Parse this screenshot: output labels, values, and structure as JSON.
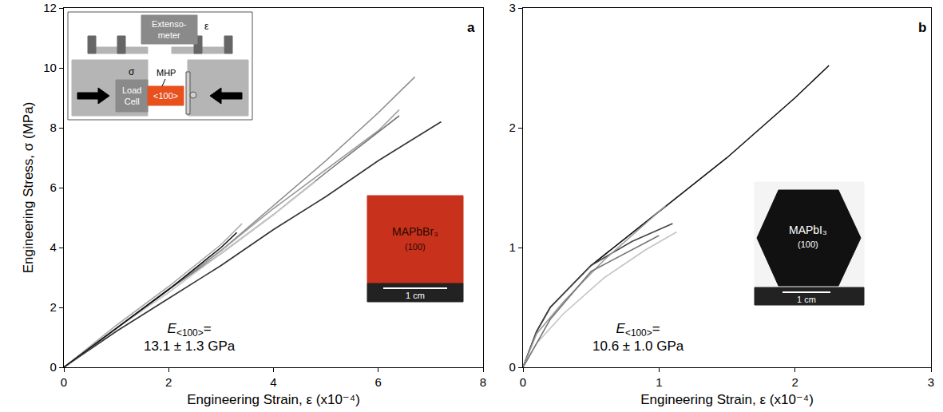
{
  "chart_data": [
    {
      "type": "line",
      "panel_label": "a",
      "x_label": "Engineering Strain, ε (x10⁻⁴)",
      "y_label": "Engineering Stress, σ (MPa)",
      "xlim": [
        0,
        8
      ],
      "xticks": [
        0,
        2,
        4,
        6,
        8
      ],
      "ylim": [
        0,
        12
      ],
      "yticks": [
        0,
        2,
        4,
        6,
        8,
        10,
        12
      ],
      "grid": false,
      "modulus": {
        "symbol": "E",
        "subscript": "<100>",
        "after": "=",
        "value": "13.1 ± 1.3 GPa"
      },
      "photo": {
        "material": "MAPbBr₃",
        "face": "(100)",
        "scale_bar": "1 cm",
        "color": "#c8321c"
      },
      "schematic": {
        "extensometer": [
          "Extenso-",
          "meter"
        ],
        "strain_symbol": "ε",
        "stress_symbol": "σ",
        "sample": "MHP",
        "load_cell": [
          "Load",
          "Cell"
        ],
        "direction": "<100>",
        "sample_color": "#e8501e"
      },
      "series": [
        {
          "color": "#333333",
          "x": [
            0,
            1,
            2,
            3,
            4,
            5,
            6,
            7.2
          ],
          "values": [
            0,
            1.2,
            2.3,
            3.4,
            4.6,
            5.7,
            6.9,
            8.2
          ]
        },
        {
          "color": "#8c8c8c",
          "x": [
            0,
            1,
            2,
            3,
            4,
            5,
            6,
            6.7
          ],
          "values": [
            0,
            1.3,
            2.6,
            3.9,
            5.4,
            6.9,
            8.5,
            9.7
          ]
        },
        {
          "color": "#9a9a9a",
          "x": [
            0,
            1,
            2,
            3,
            4,
            5,
            6,
            6.4
          ],
          "values": [
            0,
            1.3,
            2.6,
            3.9,
            5.3,
            6.6,
            7.9,
            8.6
          ]
        },
        {
          "color": "#777777",
          "x": [
            0,
            1,
            2,
            3,
            4,
            5,
            6.4
          ],
          "values": [
            0,
            1.3,
            2.6,
            3.8,
            5.1,
            6.5,
            8.4
          ]
        },
        {
          "color": "#c8c8c8",
          "x": [
            0,
            1,
            2,
            3,
            4,
            4.8
          ],
          "values": [
            0,
            1.3,
            2.5,
            3.8,
            5.1,
            6.2
          ]
        },
        {
          "color": "#aaaaaa",
          "x": [
            0,
            1,
            2,
            3,
            3.4
          ],
          "values": [
            0,
            1.4,
            2.7,
            4.1,
            4.8
          ]
        },
        {
          "color": "#111111",
          "x": [
            0,
            1,
            2,
            3,
            3.3
          ],
          "values": [
            0,
            1.3,
            2.6,
            4.0,
            4.5
          ]
        }
      ]
    },
    {
      "type": "line",
      "panel_label": "b",
      "x_label": "Engineering Strain, ε (x10⁻⁴)",
      "xlim": [
        0,
        3
      ],
      "xticks": [
        0,
        1,
        2,
        3
      ],
      "ylim": [
        0,
        3
      ],
      "yticks": [
        0,
        1,
        2,
        3
      ],
      "grid": false,
      "modulus": {
        "symbol": "E",
        "subscript": "<100>",
        "after": "=",
        "value": "10.6 ± 1.0 GPa"
      },
      "photo": {
        "material": "MAPbI₃",
        "face": "(100)",
        "scale_bar": "1 cm",
        "color": "#111111"
      },
      "series": [
        {
          "color": "#111111",
          "x": [
            0,
            0.1,
            0.2,
            0.5,
            1,
            1.5,
            2,
            2.25
          ],
          "values": [
            0,
            0.3,
            0.5,
            0.85,
            1.3,
            1.75,
            2.25,
            2.52
          ]
        },
        {
          "color": "#444444",
          "x": [
            0,
            0.1,
            0.2,
            0.5,
            0.8,
            1.1
          ],
          "values": [
            0,
            0.3,
            0.5,
            0.85,
            1.05,
            1.2
          ]
        },
        {
          "color": "#999999",
          "x": [
            0,
            0.1,
            0.3,
            0.6,
            0.9,
            1.05
          ],
          "values": [
            0,
            0.28,
            0.55,
            0.9,
            1.2,
            1.35
          ]
        },
        {
          "color": "#c4c4c4",
          "x": [
            0,
            0.1,
            0.3,
            0.6,
            0.9,
            1.13
          ],
          "values": [
            0,
            0.2,
            0.45,
            0.75,
            0.98,
            1.13
          ]
        },
        {
          "color": "#777777",
          "x": [
            0,
            0.2,
            0.5,
            1.0
          ],
          "values": [
            0,
            0.4,
            0.8,
            1.1
          ]
        }
      ]
    }
  ]
}
